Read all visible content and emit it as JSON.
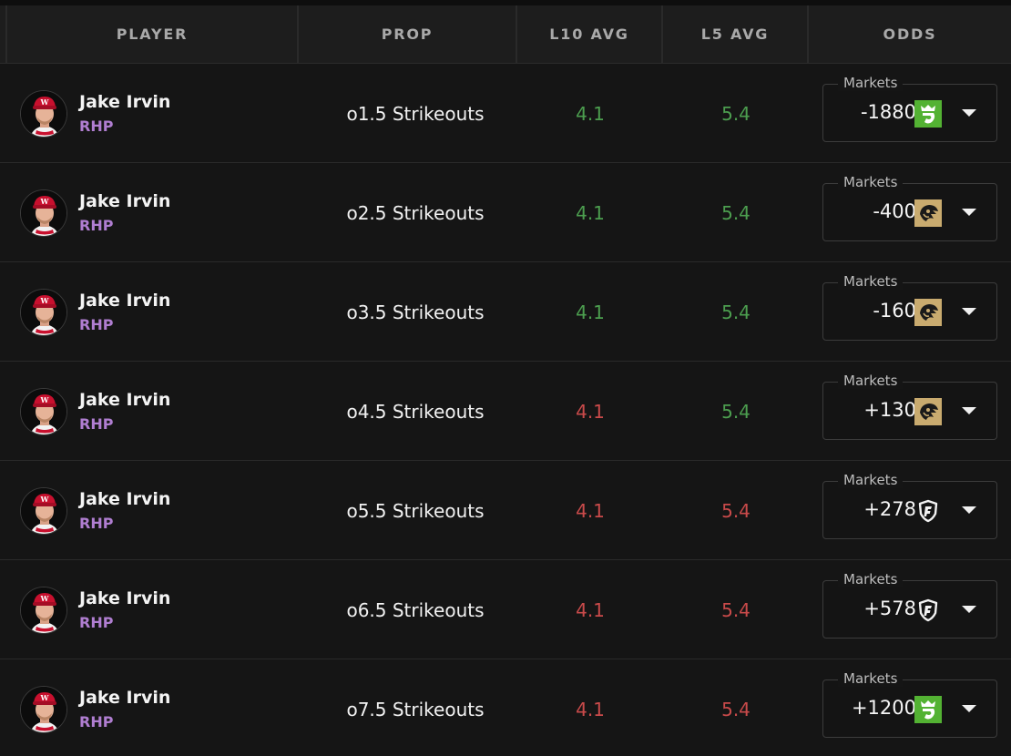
{
  "header": {
    "columns": [
      "PLAYER",
      "PROP",
      "L10 AVG",
      "L5 AVG",
      "ODDS"
    ]
  },
  "colors": {
    "green": "#4c9e4f",
    "red": "#c94a4a",
    "position": "#b07ed1",
    "draftkings": "#53b233",
    "betmgm": "#c9ab6f"
  },
  "market_label": "Markets",
  "rows": [
    {
      "name": "Jake Irvin",
      "position": "RHP",
      "prop": "o1.5 Strikeouts",
      "l10": "4.1",
      "l10_status": "green",
      "l5": "5.4",
      "l5_status": "green",
      "odds": "-1880",
      "book": "draftkings-icon"
    },
    {
      "name": "Jake Irvin",
      "position": "RHP",
      "prop": "o2.5 Strikeouts",
      "l10": "4.1",
      "l10_status": "green",
      "l5": "5.4",
      "l5_status": "green",
      "odds": "-400",
      "book": "betmgm-icon"
    },
    {
      "name": "Jake Irvin",
      "position": "RHP",
      "prop": "o3.5 Strikeouts",
      "l10": "4.1",
      "l10_status": "green",
      "l5": "5.4",
      "l5_status": "green",
      "odds": "-160",
      "book": "betmgm-icon"
    },
    {
      "name": "Jake Irvin",
      "position": "RHP",
      "prop": "o4.5 Strikeouts",
      "l10": "4.1",
      "l10_status": "red",
      "l5": "5.4",
      "l5_status": "green",
      "odds": "+130",
      "book": "betmgm-icon"
    },
    {
      "name": "Jake Irvin",
      "position": "RHP",
      "prop": "o5.5 Strikeouts",
      "l10": "4.1",
      "l10_status": "red",
      "l5": "5.4",
      "l5_status": "red",
      "odds": "+278",
      "book": "fanduel-icon"
    },
    {
      "name": "Jake Irvin",
      "position": "RHP",
      "prop": "o6.5 Strikeouts",
      "l10": "4.1",
      "l10_status": "red",
      "l5": "5.4",
      "l5_status": "red",
      "odds": "+578",
      "book": "fanduel-icon"
    },
    {
      "name": "Jake Irvin",
      "position": "RHP",
      "prop": "o7.5 Strikeouts",
      "l10": "4.1",
      "l10_status": "red",
      "l5": "5.4",
      "l5_status": "red",
      "odds": "+1200",
      "book": "draftkings-icon"
    }
  ]
}
